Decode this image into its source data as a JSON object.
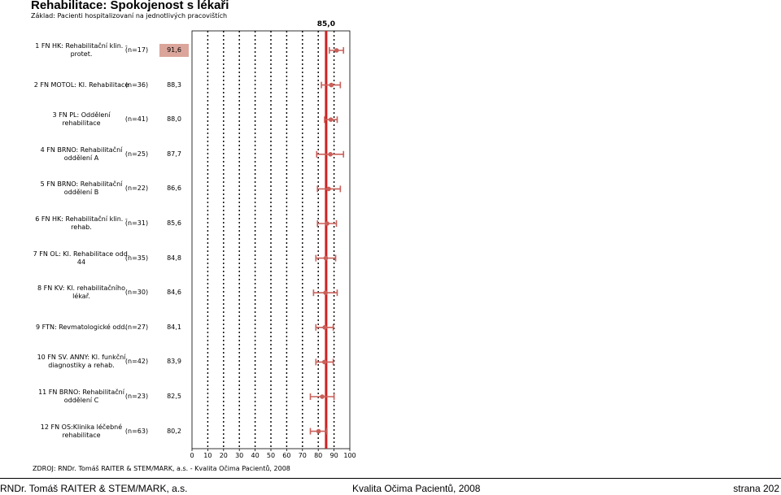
{
  "header": {
    "title": "Rehabilitace: Spokojenost s lékaři",
    "subtitle": "Základ: Pacienti hospitalizovaní na jednotlivých pracovištích"
  },
  "chart_data": {
    "type": "dot-interval",
    "reference_value": 85.0,
    "reference_label": "85,0",
    "xlim": [
      0,
      100
    ],
    "x_ticks": [
      "0",
      "10",
      "20",
      "30",
      "40",
      "50",
      "60",
      "70",
      "80",
      "90",
      "100"
    ],
    "rows": [
      {
        "label": "1 FN HK: Rehabilitační klin. - protet.",
        "n": "(n=17)",
        "value": 91.6,
        "value_label": "91,6",
        "ci": [
          87,
          96
        ],
        "highlight": true
      },
      {
        "label": "2 FN MOTOL: Kl. Rehabilitace",
        "n": "(n=36)",
        "value": 88.3,
        "value_label": "88,3",
        "ci": [
          82,
          94
        ]
      },
      {
        "label": "3 FN PL: Oddělení rehabilitace",
        "n": "(n=41)",
        "value": 88.0,
        "value_label": "88,0",
        "ci": [
          84,
          92
        ]
      },
      {
        "label": "4 FN BRNO: Rehabilitační oddělení A",
        "n": "(n=25)",
        "value": 87.7,
        "value_label": "87,7",
        "ci": [
          79,
          96
        ]
      },
      {
        "label": "5 FN BRNO: Rehabilitační oddělení B",
        "n": "(n=22)",
        "value": 86.6,
        "value_label": "86,6",
        "ci": [
          79.5,
          94
        ]
      },
      {
        "label": "6 FN HK: Rehabilitační klin. - rehab.",
        "n": "(n=31)",
        "value": 85.6,
        "value_label": "85,6",
        "ci": [
          79.5,
          91.5
        ]
      },
      {
        "label": "7 FN OL: Kl. Rehabilitace odd. 44",
        "n": "(n=35)",
        "value": 84.8,
        "value_label": "84,8",
        "ci": [
          78.5,
          91
        ]
      },
      {
        "label": "8 FN KV: Kl. rehabilitačního lékař.",
        "n": "(n=30)",
        "value": 84.6,
        "value_label": "84,6",
        "ci": [
          77,
          92
        ]
      },
      {
        "label": "9 FTN: Revmatologické odd.",
        "n": "(n=27)",
        "value": 84.1,
        "value_label": "84,1",
        "ci": [
          78.5,
          89.5
        ]
      },
      {
        "label": "10 FN SV. ANNY: Kl. funkční diagnostiky a rehab.",
        "n": "(n=42)",
        "value": 83.9,
        "value_label": "83,9",
        "ci": [
          78.5,
          89.5
        ]
      },
      {
        "label": "11 FN BRNO: Rehabilitační oddělení C",
        "n": "(n=23)",
        "value": 82.5,
        "value_label": "82,5",
        "ci": [
          75,
          90
        ]
      },
      {
        "label": "12 FN OS:Klinika léčebné rehabilitace",
        "n": "(n=63)",
        "value": 80.2,
        "value_label": "80,2",
        "ci": [
          75,
          85.5
        ]
      }
    ],
    "colors": {
      "points": "#c9605a",
      "reference": "#cc2222",
      "highlight_bg": "#dba59b"
    },
    "grid": "dotted vertical"
  },
  "source": "ZDROJ: RNDr. Tomáš RAITER & STEM/MARK, a.s. - Kvalita Očima Pacientů, 2008",
  "footer": {
    "left": "RNDr. Tomáš RAITER & STEM/MARK, a.s.",
    "center": "Kvalita Očima Pacientů, 2008",
    "right": "strana 202"
  }
}
